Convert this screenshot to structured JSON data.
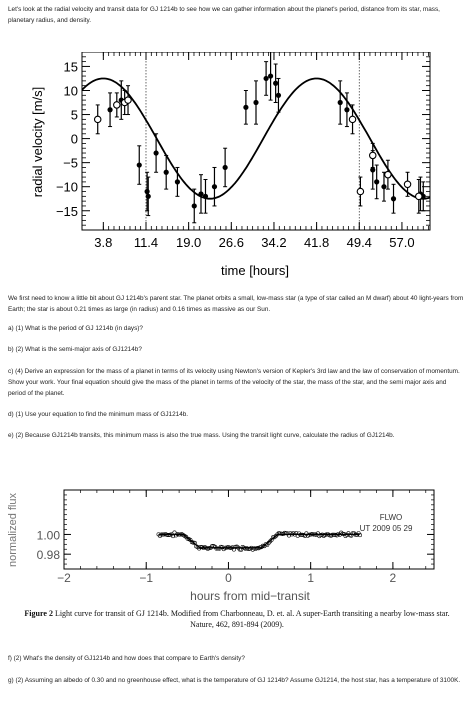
{
  "intro": "Let's look at the radial velocity and transit data for GJ 1214b to see how we can gather information about the planet's period, distance from its star, mass, planetary radius, and density.",
  "background": "We first need to know a little bit about GJ 1214b's parent star. The planet orbits a small, low-mass star (a type of star called an M dwarf) about 40 light-years from Earth; the star is about 0.21 times as large (in radius) and 0.16 times as massive as our Sun.",
  "questions": {
    "a": "a) (1) What is the period of GJ 1214b (in days)?",
    "b": "b) (2) What is the semi-major axis of GJ1214b?",
    "c": "c) (4) Derive an expression for the mass of a planet in terms of its velocity using Newton's version of Kepler's 3rd law and the law of conservation of momentum. Show your work. Your final equation should give the mass of the planet in terms of the velocity of the star, the mass of the star, and the semi major axis and period of the planet.",
    "d": "d) (1) Use your equation to find the minimum mass of GJ1214b.",
    "e": "e) (2) Because GJ1214b transits, this minimum mass is also the true mass. Using the transit light curve, calculate the radius of GJ1214b.",
    "f": "f) (2) What's the density of GJ1214b and how does that compare to Earth's density?",
    "g": "g) (2) Assuming an albedo of 0.30 and no greenhouse effect, what is the temperature of GJ 1214b? Assume GJ1214, the host star, has a temperature of 3100K."
  },
  "caption": {
    "label": "Figure 2",
    "text": "Light curve for transit of GJ 1214b.  Modified from Charbonneau, D. et. al. A super-Earth transiting a nearby low-mass star. Nature, 462, 891-894 (2009)."
  },
  "chart_data": [
    {
      "type": "scatter",
      "title": "",
      "xlabel": "time [hours]",
      "ylabel": "radial velocity [m/s]",
      "xlim": [
        0,
        62
      ],
      "ylim": [
        -19,
        18
      ],
      "xticks": [
        "3.8",
        "11.4",
        "19.0",
        "26.6",
        "34.2",
        "41.8",
        "49.4",
        "57.0"
      ],
      "xtick_values": [
        3.8,
        11.4,
        19.0,
        26.6,
        34.2,
        41.8,
        49.4,
        57.0
      ],
      "yticks": [
        "15",
        "10",
        "5",
        "0",
        "−5",
        "−10",
        "−15"
      ],
      "ytick_values": [
        15,
        10,
        5,
        0,
        -5,
        -10,
        -15
      ],
      "vlines": [
        11.4,
        49.4
      ],
      "model_curve": {
        "type": "sinusoid",
        "amplitude": 12.5,
        "period": 38.0,
        "peak_at": 3.8
      },
      "series": [
        {
          "marker": "filled",
          "x": [
            5.0,
            7.0,
            10.2,
            11.6,
            11.8,
            13.2,
            15.0,
            17.0,
            20.0,
            21.2,
            22.0,
            23.6,
            25.5,
            29.2,
            31.0,
            32.8,
            33.6,
            34.5,
            35.0,
            46.0,
            47.2,
            51.8,
            52.5,
            53.8,
            55.5,
            60.3,
            60.8
          ],
          "y": [
            6.0,
            8.0,
            -5.5,
            -11.0,
            -12.0,
            -3.0,
            -7.0,
            -9.0,
            -14.0,
            -11.5,
            -12.0,
            -10.0,
            -6.0,
            6.5,
            7.5,
            12.5,
            13.0,
            11.5,
            9.0,
            7.5,
            6.0,
            -6.5,
            -9.0,
            -10.0,
            -12.5,
            -11.5,
            -12.0
          ],
          "err": [
            3.5,
            4.0,
            4.0,
            4.0,
            4.0,
            4.0,
            3.5,
            3.0,
            3.5,
            4.0,
            3.5,
            4.0,
            4.0,
            3.5,
            4.5,
            3.5,
            5.0,
            4.0,
            3.5,
            4.5,
            3.5,
            4.0,
            3.5,
            3.0,
            3.0,
            3.5,
            3.0
          ]
        },
        {
          "marker": "open",
          "x": [
            2.8,
            6.2,
            7.6,
            8.2,
            48.2,
            49.6,
            51.8,
            54.5,
            58.0,
            60.0
          ],
          "y": [
            4.0,
            7.0,
            7.5,
            8.0,
            4.0,
            -11.0,
            -3.5,
            -7.5,
            -9.5,
            -12.0
          ],
          "err": [
            3.0,
            2.5,
            2.5,
            3.0,
            3.0,
            3.0,
            2.5,
            3.0,
            2.5,
            3.5
          ]
        }
      ]
    },
    {
      "type": "scatter",
      "title": "",
      "xlabel": "hours from mid−transit",
      "ylabel": "normalized flux",
      "xlim": [
        -2.0,
        2.5
      ],
      "ylim": [
        0.965,
        1.045
      ],
      "xticks": [
        "−2",
        "−1",
        "0",
        "1",
        "2"
      ],
      "xtick_values": [
        -2,
        -1,
        0,
        1,
        2
      ],
      "yticks": [
        "1.00",
        "0.98"
      ],
      "ytick_values": [
        1.0,
        0.98
      ],
      "annotation": [
        "FLWO",
        "UT 2009 05 29"
      ],
      "model_curve": {
        "type": "transit",
        "depth": 0.0135,
        "ingress_start": -0.55,
        "ingress_end": -0.35,
        "egress_start": 0.4,
        "egress_end": 0.6
      },
      "series": [
        {
          "name": "",
          "marker": "open",
          "x_range": [
            -0.85,
            1.6
          ],
          "n_points": 140,
          "scatter": 0.0022
        }
      ]
    }
  ]
}
